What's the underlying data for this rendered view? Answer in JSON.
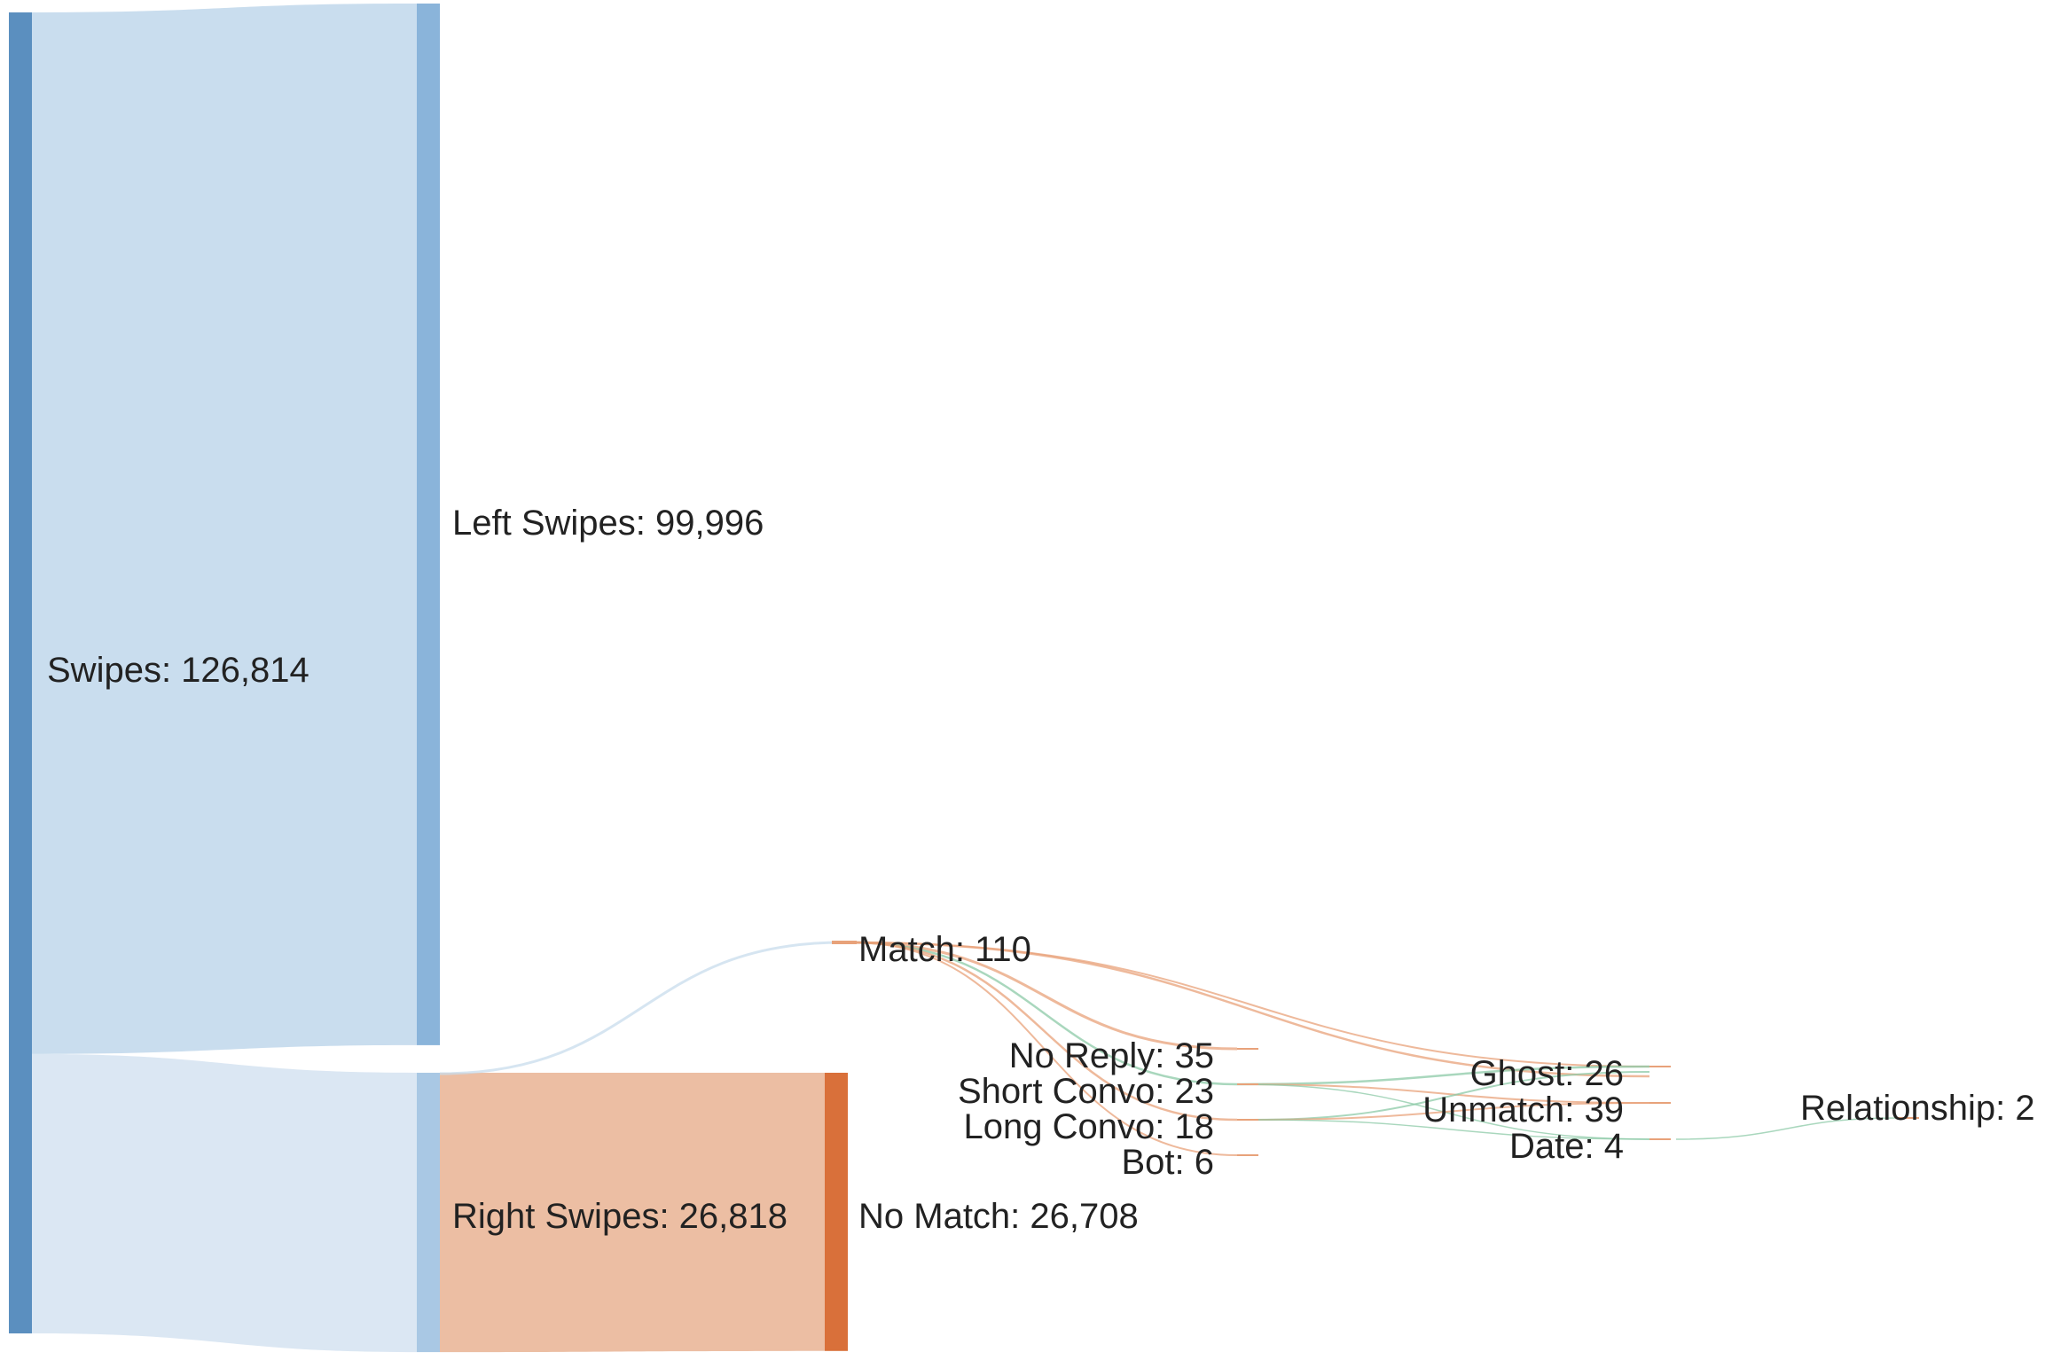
{
  "colors": {
    "swipes": "#5b8fbf",
    "left": "#8ab4da",
    "right": "#a9c8e4",
    "no_match": "#d9703a",
    "flow_left": "#c9ddee",
    "flow_right": "#dbe7f3",
    "flow_nomatch": "#ecbea3",
    "flow_match": "#c8dcec",
    "flow_orange": "#e8a27a",
    "flow_green": "#8cc9a7"
  },
  "chart_data": {
    "type": "sankey",
    "nodes": [
      {
        "id": "swipes",
        "label": "Swipes: 126,814",
        "value": 126814
      },
      {
        "id": "left",
        "label": "Left Swipes: 99,996",
        "value": 99996
      },
      {
        "id": "right",
        "label": "Right Swipes: 26,818",
        "value": 26818
      },
      {
        "id": "match",
        "label": "Match: 110",
        "value": 110
      },
      {
        "id": "no_match",
        "label": "No Match: 26,708",
        "value": 26708
      },
      {
        "id": "no_reply",
        "label": "No Reply: 35",
        "value": 35
      },
      {
        "id": "short_convo",
        "label": "Short Convo: 23",
        "value": 23
      },
      {
        "id": "long_convo",
        "label": "Long Convo: 18",
        "value": 18
      },
      {
        "id": "bot",
        "label": "Bot: 6",
        "value": 6
      },
      {
        "id": "ghost",
        "label": "Ghost: 26",
        "value": 26
      },
      {
        "id": "unmatch",
        "label": "Unmatch: 39",
        "value": 39
      },
      {
        "id": "date",
        "label": "Date: 4",
        "value": 4
      },
      {
        "id": "relationship",
        "label": "Relationship: 2",
        "value": 2
      }
    ],
    "links": [
      {
        "source": "swipes",
        "target": "left",
        "value": 99996
      },
      {
        "source": "swipes",
        "target": "right",
        "value": 26818
      },
      {
        "source": "right",
        "target": "match",
        "value": 110
      },
      {
        "source": "right",
        "target": "no_match",
        "value": 26708
      },
      {
        "source": "match",
        "target": "no_reply",
        "value": 35
      },
      {
        "source": "match",
        "target": "short_convo",
        "value": 23
      },
      {
        "source": "match",
        "target": "long_convo",
        "value": 18
      },
      {
        "source": "match",
        "target": "bot",
        "value": 6
      },
      {
        "source": "match",
        "target": "unmatch",
        "value": 28
      },
      {
        "source": "short_convo",
        "target": "ghost",
        "value": 16
      },
      {
        "source": "short_convo",
        "target": "unmatch",
        "value": 5
      },
      {
        "source": "short_convo",
        "target": "date",
        "value": 2
      },
      {
        "source": "long_convo",
        "target": "ghost",
        "value": 10
      },
      {
        "source": "long_convo",
        "target": "unmatch",
        "value": 6
      },
      {
        "source": "long_convo",
        "target": "date",
        "value": 2
      },
      {
        "source": "date",
        "target": "relationship",
        "value": 2
      }
    ]
  }
}
